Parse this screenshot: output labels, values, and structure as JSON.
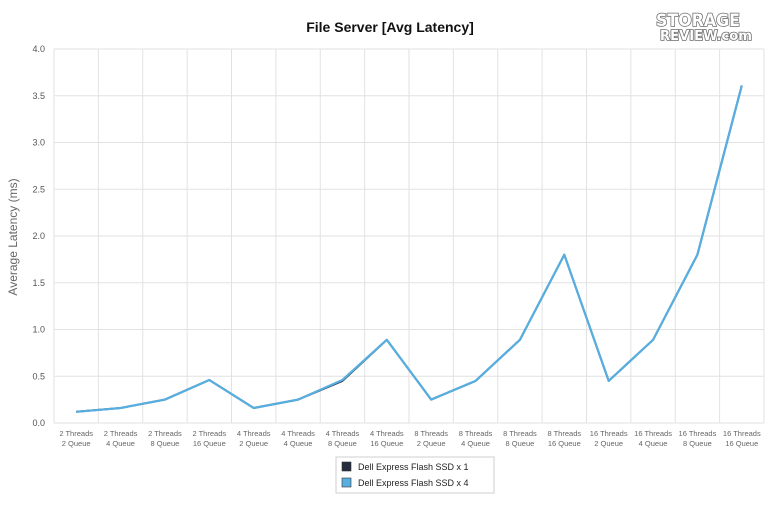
{
  "logo": {
    "line1": "STORAGE",
    "line2": "REVIEW.com"
  },
  "chart_data": {
    "type": "line",
    "title": "File Server [Avg Latency]",
    "xlabel": "",
    "ylabel": "Average Latency (ms)",
    "ylim": [
      0,
      4.0
    ],
    "yticks": [
      "0.0",
      "0.5",
      "1.0",
      "1.5",
      "2.0",
      "2.5",
      "3.0",
      "3.5",
      "4.0"
    ],
    "grid": true,
    "legend_position": "bottom-center",
    "categories": [
      {
        "line1": "2 Threads",
        "line2": "2 Queue"
      },
      {
        "line1": "2 Threads",
        "line2": "4 Queue"
      },
      {
        "line1": "2 Threads",
        "line2": "8 Queue"
      },
      {
        "line1": "2 Threads",
        "line2": "16 Queue"
      },
      {
        "line1": "4 Threads",
        "line2": "2 Queue"
      },
      {
        "line1": "4 Threads",
        "line2": "4 Queue"
      },
      {
        "line1": "4 Threads",
        "line2": "8 Queue"
      },
      {
        "line1": "4 Threads",
        "line2": "16 Queue"
      },
      {
        "line1": "8 Threads",
        "line2": "2 Queue"
      },
      {
        "line1": "8 Threads",
        "line2": "4 Queue"
      },
      {
        "line1": "8 Threads",
        "line2": "8 Queue"
      },
      {
        "line1": "8 Threads",
        "line2": "16 Queue"
      },
      {
        "line1": "16 Threads",
        "line2": "2 Queue"
      },
      {
        "line1": "16 Threads",
        "line2": "4 Queue"
      },
      {
        "line1": "16 Threads",
        "line2": "8 Queue"
      },
      {
        "line1": "16 Threads",
        "line2": "16 Queue"
      }
    ],
    "series": [
      {
        "name": "Dell Express Flash SSD x 1",
        "color": "#252c3e",
        "values": [
          0.12,
          0.16,
          0.25,
          0.46,
          0.16,
          0.25,
          0.45,
          0.89,
          0.25,
          0.45,
          0.89,
          1.8,
          0.45,
          0.89,
          1.8,
          3.61
        ]
      },
      {
        "name": "Dell Express Flash SSD x 4",
        "color": "#57aee0",
        "values": [
          0.12,
          0.16,
          0.25,
          0.46,
          0.16,
          0.25,
          0.46,
          0.89,
          0.25,
          0.45,
          0.89,
          1.8,
          0.45,
          0.89,
          1.8,
          3.61
        ]
      }
    ]
  }
}
